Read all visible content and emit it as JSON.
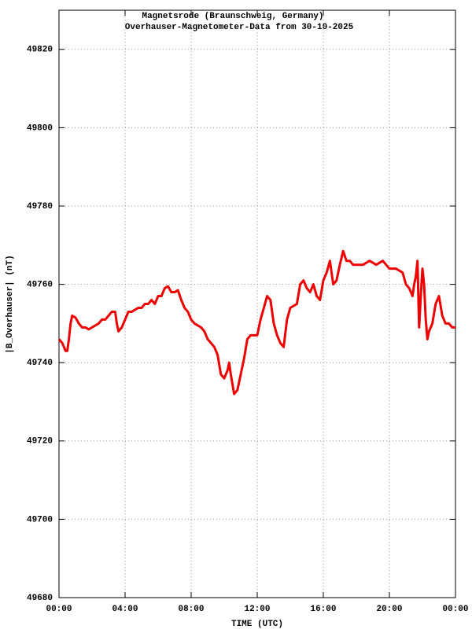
{
  "chart_data": {
    "type": "line",
    "title": "Magnetsrode (Braunschweig, Germany)",
    "subtitle": "Overhauser-Magnetometer-Data from 30-10-2025",
    "xlabel": "TIME (UTC)",
    "ylabel": "|B_Overhauser| (nT)",
    "color": "#ee0000",
    "grid": true,
    "xlim": [
      0,
      24
    ],
    "xticks": [
      {
        "value": 0,
        "label": "00:00"
      },
      {
        "value": 4,
        "label": "04:00"
      },
      {
        "value": 8,
        "label": "08:00"
      },
      {
        "value": 12,
        "label": "12:00"
      },
      {
        "value": 16,
        "label": "16:00"
      },
      {
        "value": 20,
        "label": "20:00"
      },
      {
        "value": 24,
        "label": "00:00"
      }
    ],
    "ylim": [
      49680,
      49830
    ],
    "yticks": [
      49680,
      49700,
      49720,
      49740,
      49760,
      49780,
      49800,
      49820
    ],
    "x": [
      0,
      0.2,
      0.4,
      0.5,
      0.6,
      0.7,
      0.8,
      1.0,
      1.2,
      1.4,
      1.6,
      1.8,
      2.0,
      2.2,
      2.4,
      2.6,
      2.8,
      3.0,
      3.2,
      3.4,
      3.5,
      3.6,
      3.8,
      4.0,
      4.2,
      4.4,
      4.6,
      4.8,
      5.0,
      5.2,
      5.4,
      5.6,
      5.8,
      6.0,
      6.2,
      6.4,
      6.6,
      6.8,
      7.0,
      7.2,
      7.4,
      7.6,
      7.8,
      8.0,
      8.2,
      8.4,
      8.6,
      8.8,
      9.0,
      9.2,
      9.4,
      9.6,
      9.8,
      10.0,
      10.2,
      10.3,
      10.4,
      10.6,
      10.8,
      11.0,
      11.2,
      11.4,
      11.6,
      11.8,
      12.0,
      12.2,
      12.4,
      12.6,
      12.8,
      13.0,
      13.2,
      13.4,
      13.6,
      13.8,
      14.0,
      14.2,
      14.4,
      14.6,
      14.8,
      15.0,
      15.2,
      15.4,
      15.6,
      15.8,
      16.0,
      16.2,
      16.4,
      16.6,
      16.8,
      17.0,
      17.2,
      17.4,
      17.6,
      17.8,
      18.0,
      18.4,
      18.8,
      19.2,
      19.6,
      19.8,
      20.0,
      20.4,
      20.8,
      21.0,
      21.2,
      21.4,
      21.5,
      21.6,
      21.7,
      21.8,
      21.9,
      22.0,
      22.1,
      22.2,
      22.3,
      22.4,
      22.6,
      22.8,
      23.0,
      23.2,
      23.4,
      23.6,
      23.8,
      24.0
    ],
    "values": [
      49746,
      49745,
      49743,
      49743,
      49746,
      49750,
      49752,
      49751.5,
      49750,
      49749,
      49749,
      49748.5,
      49749,
      49749.5,
      49750,
      49751,
      49751,
      49752,
      49753,
      49753,
      49750,
      49748,
      49749,
      49751,
      49753,
      49753,
      49753.5,
      49754,
      49754,
      49755,
      49755,
      49756,
      49755,
      49757,
      49757,
      49759,
      49759.5,
      49758,
      49758,
      49758.5,
      49756,
      49754,
      49753,
      49751,
      49750,
      49749.5,
      49749,
      49748,
      49746,
      49745,
      49744,
      49742,
      49737,
      49736,
      49738,
      49740,
      49737,
      49732,
      49733,
      49737,
      49741,
      49746,
      49747,
      49747,
      49747,
      49751,
      49754,
      49757,
      49756,
      49750,
      49747,
      49745,
      49744,
      49751,
      49754,
      49754.5,
      49755,
      49760,
      49761,
      49759,
      49758,
      49760,
      49757,
      49756,
      49761,
      49763,
      49766,
      49760,
      49761,
      49765,
      49768.5,
      49766,
      49766,
      49765,
      49765,
      49765,
      49766,
      49765,
      49766,
      49765,
      49764,
      49764,
      49763,
      49760,
      49759,
      49757,
      49760,
      49762,
      49766,
      49749,
      49757,
      49764,
      49760,
      49751,
      49746,
      49748,
      49750,
      49755,
      49757,
      49752,
      49750,
      49750,
      49749,
      49749
    ]
  }
}
